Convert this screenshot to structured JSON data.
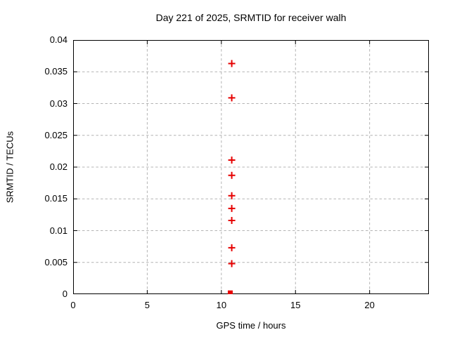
{
  "figure": {
    "title": "Day 221 of 2025, SRMTID for receiver walh",
    "xlabel": "GPS time / hours",
    "ylabel": "SRMTID / TECUs",
    "colors": {
      "background": "#ffffff",
      "border": "#000000",
      "grid": "#b4b4b4",
      "text": "#000000",
      "marker": "#e60000"
    }
  },
  "chart_data": {
    "type": "scatter",
    "title": "Day 221 of 2025, SRMTID for receiver walh",
    "xlabel": "GPS time / hours",
    "ylabel": "SRMTID / TECUs",
    "xlim": [
      0,
      24
    ],
    "ylim": [
      0,
      0.04
    ],
    "grid": true,
    "legend": "none",
    "xticks": [
      {
        "value": 0,
        "label": "0"
      },
      {
        "value": 5,
        "label": "5"
      },
      {
        "value": 10,
        "label": "10"
      },
      {
        "value": 15,
        "label": "15"
      },
      {
        "value": 20,
        "label": "20"
      }
    ],
    "yticks": [
      {
        "value": 0,
        "label": "0"
      },
      {
        "value": 0.005,
        "label": "0.005"
      },
      {
        "value": 0.01,
        "label": "0.01"
      },
      {
        "value": 0.015,
        "label": "0.015"
      },
      {
        "value": 0.02,
        "label": "0.02"
      },
      {
        "value": 0.025,
        "label": "0.025"
      },
      {
        "value": 0.03,
        "label": "0.03"
      },
      {
        "value": 0.035,
        "label": "0.035"
      },
      {
        "value": 0.04,
        "label": "0.04"
      }
    ],
    "series": [
      {
        "name": "srmtid-values",
        "marker": "plus",
        "color": "#e60000",
        "points": [
          {
            "x": 10.7,
            "y": 0.0363
          },
          {
            "x": 10.7,
            "y": 0.0309
          },
          {
            "x": 10.7,
            "y": 0.0211
          },
          {
            "x": 10.7,
            "y": 0.0187
          },
          {
            "x": 10.7,
            "y": 0.0155
          },
          {
            "x": 10.7,
            "y": 0.0135
          },
          {
            "x": 10.7,
            "y": 0.0116
          },
          {
            "x": 10.7,
            "y": 0.0073
          },
          {
            "x": 10.7,
            "y": 0.0048
          }
        ]
      },
      {
        "name": "srmtid-zero-marker",
        "marker": "filled-square",
        "color": "#e60000",
        "points": [
          {
            "x": 10.6,
            "y": 0.0002
          }
        ]
      }
    ]
  }
}
